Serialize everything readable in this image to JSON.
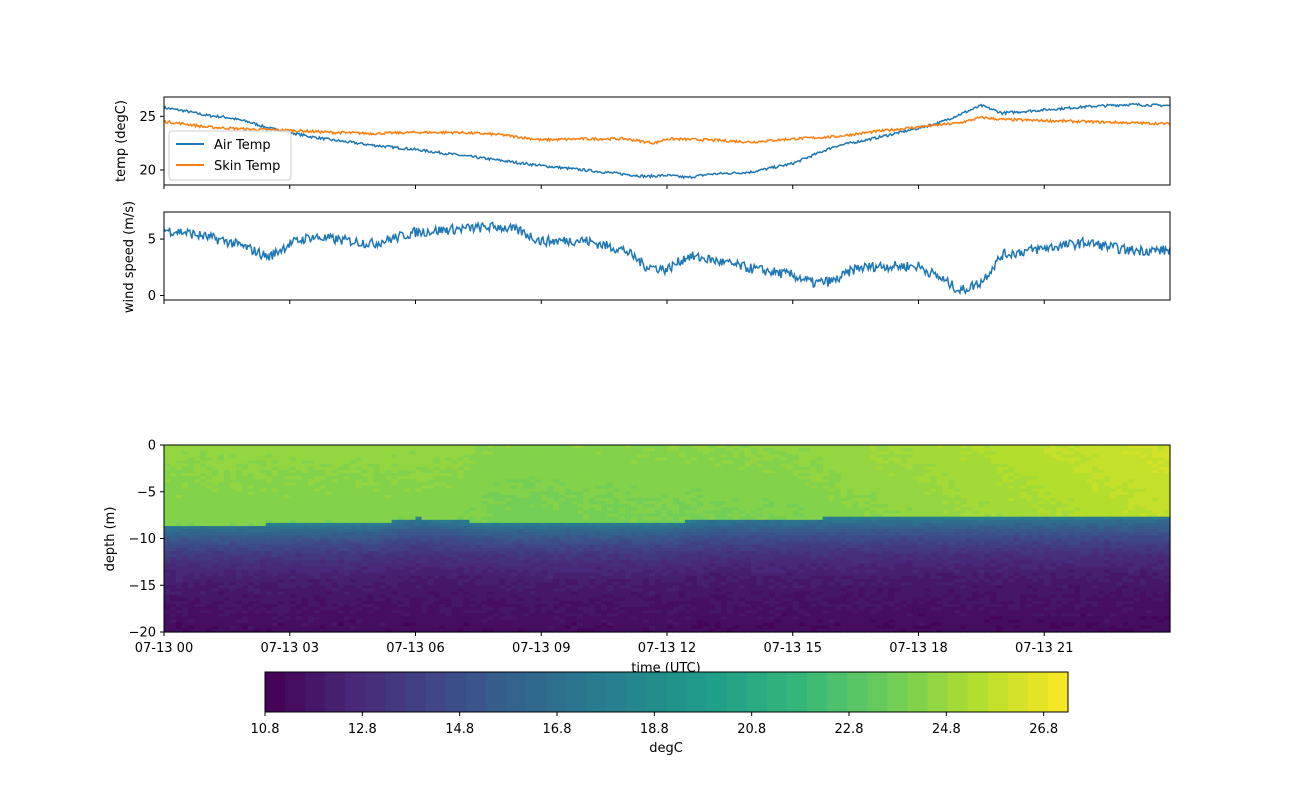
{
  "chart_data": [
    {
      "type": "line",
      "ylabel": "temp (degC)",
      "yticks": [
        20,
        25
      ],
      "ylim": [
        18.6,
        26.8
      ],
      "xlim_hours": [
        0,
        24
      ],
      "legend": {
        "placement": "lower-left",
        "entries": [
          "Air Temp",
          "Skin Temp"
        ]
      },
      "series": [
        {
          "name": "Air Temp",
          "color": "#1f77b4",
          "x_hours": [
            0,
            0.5,
            1,
            1.5,
            2,
            2.5,
            3,
            3.5,
            4,
            5,
            6,
            7,
            8,
            9,
            10,
            11,
            11.5,
            12,
            12.5,
            13,
            14,
            15,
            16,
            17,
            18,
            18.5,
            19,
            19.5,
            20,
            21,
            22,
            23,
            24
          ],
          "values": [
            25.8,
            25.5,
            25.1,
            24.9,
            24.5,
            23.9,
            23.5,
            23.1,
            22.8,
            22.3,
            21.9,
            21.4,
            20.9,
            20.4,
            20.0,
            19.6,
            19.4,
            19.5,
            19.3,
            19.6,
            19.8,
            20.6,
            22.2,
            23.0,
            23.9,
            24.4,
            25.2,
            26.0,
            25.3,
            25.6,
            25.9,
            26.1,
            26.0
          ]
        },
        {
          "name": "Skin Temp",
          "color": "#ff7f0e",
          "x_hours": [
            0,
            0.5,
            1,
            2,
            3,
            4,
            5,
            6,
            7,
            8,
            9,
            10,
            11,
            11.7,
            12,
            13,
            14,
            15,
            16,
            17,
            18,
            19,
            19.5,
            20,
            21,
            22,
            23,
            24
          ],
          "values": [
            24.5,
            24.3,
            24.0,
            23.8,
            23.7,
            23.5,
            23.4,
            23.5,
            23.5,
            23.3,
            22.8,
            22.9,
            22.9,
            22.5,
            22.9,
            22.8,
            22.6,
            22.9,
            23.1,
            23.6,
            24.0,
            24.4,
            24.9,
            24.7,
            24.6,
            24.5,
            24.4,
            24.3
          ]
        }
      ]
    },
    {
      "type": "line",
      "ylabel": "wind speed (m/s)",
      "yticks": [
        0,
        5
      ],
      "ylim": [
        -0.4,
        7.4
      ],
      "xlim_hours": [
        0,
        24
      ],
      "series": [
        {
          "color": "#1f77b4",
          "x_hours": [
            0,
            0.5,
            1,
            1.5,
            2,
            2.5,
            3,
            3.5,
            4,
            5,
            6,
            7,
            8,
            8.5,
            9,
            10,
            11,
            11.5,
            12,
            12.5,
            13,
            14,
            15,
            15.5,
            16,
            16.5,
            17,
            18,
            18.5,
            19,
            19.5,
            20,
            21,
            22,
            23,
            24
          ],
          "values": [
            5.8,
            5.6,
            5.2,
            4.8,
            4.2,
            3.4,
            4.6,
            5.2,
            5.0,
            4.6,
            5.6,
            5.9,
            6.1,
            5.7,
            4.8,
            4.9,
            4.0,
            2.6,
            2.3,
            3.5,
            3.2,
            2.4,
            1.8,
            1.1,
            1.3,
            2.4,
            2.6,
            2.6,
            1.6,
            0.4,
            1.2,
            3.6,
            4.2,
            4.7,
            4.0,
            4.0
          ]
        }
      ]
    },
    {
      "type": "heatmap",
      "ylabel": "depth (m)",
      "xlabel": "time (UTC)",
      "yticks": [
        0,
        -5,
        -10,
        -15,
        -20
      ],
      "ylim": [
        -20,
        0
      ],
      "xticks": [
        "07-13 00",
        "07-13 03",
        "07-13 06",
        "07-13 09",
        "07-13 12",
        "07-13 15",
        "07-13 18",
        "07-13 21"
      ],
      "xtick_hours": [
        0,
        3,
        6,
        9,
        12,
        15,
        18,
        21
      ],
      "xlim_hours": [
        0,
        24
      ],
      "thermocline_depth": {
        "x_hours": [
          0,
          5,
          6,
          8,
          12,
          13,
          17,
          21,
          24
        ],
        "depth_m": [
          -8.6,
          -8.4,
          -7.8,
          -8.4,
          -8.4,
          -7.9,
          -7.8,
          -7.7,
          -7.6
        ]
      },
      "surface_temp": {
        "x_hours": [
          0,
          7,
          8,
          12,
          15,
          18,
          21,
          24
        ],
        "degC": [
          24.6,
          24.6,
          24.3,
          24.4,
          24.5,
          25.0,
          25.6,
          26.2
        ]
      },
      "deep_temp": 11.2,
      "colorbar": {
        "label": "degC",
        "min": 10.8,
        "max": 27.3,
        "levels": 40,
        "ticks": [
          10.8,
          12.8,
          14.8,
          16.8,
          18.8,
          20.8,
          22.8,
          24.8,
          26.8
        ],
        "tick_labels": [
          "10.8",
          "12.8",
          "14.8",
          "16.8",
          "18.8",
          "20.8",
          "22.8",
          "24.8",
          "26.8"
        ],
        "colormap": "viridis"
      }
    }
  ]
}
